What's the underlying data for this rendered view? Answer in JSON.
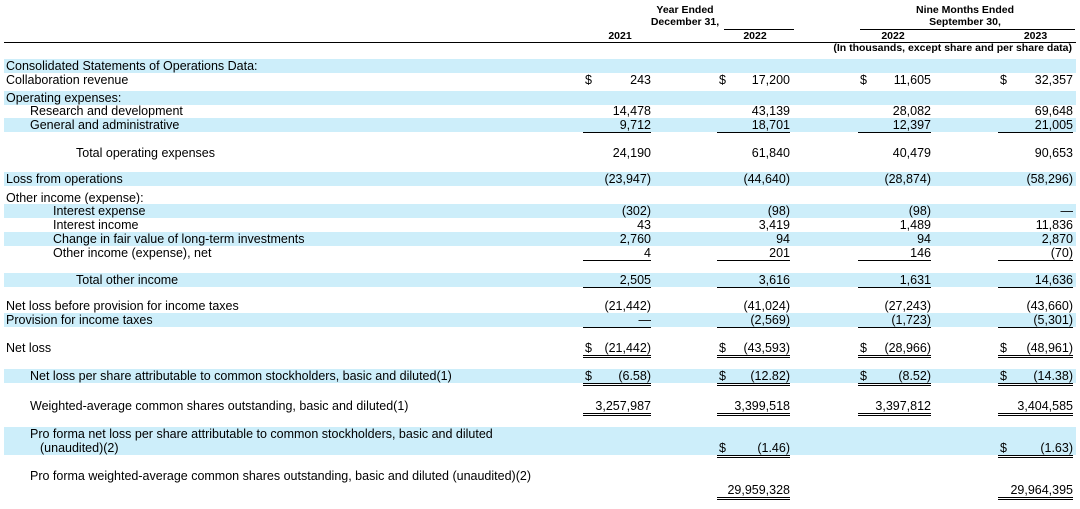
{
  "header": {
    "year_ended": "Year Ended",
    "dec31": "December 31,",
    "nine_months": "Nine Months Ended",
    "sep30": "September 30,",
    "col_2021": "2021",
    "col_2022": "2022",
    "col_2022b": "2022",
    "col_2023": "2023",
    "units": "(In thousands, except share and per share data)"
  },
  "rows": [
    {
      "label": "Consolidated Statements of Operations Data:",
      "values": [
        "",
        "",
        "",
        ""
      ]
    },
    {
      "label": "Collaboration revenue",
      "values": [
        "243",
        "17,200",
        "11,605",
        "32,357"
      ]
    },
    {
      "label": "Operating expenses:",
      "values": [
        "",
        "",
        "",
        ""
      ]
    },
    {
      "label": "Research and development",
      "values": [
        "14,478",
        "43,139",
        "28,082",
        "69,648"
      ]
    },
    {
      "label": "General and administrative",
      "values": [
        "9,712",
        "18,701",
        "12,397",
        "21,005"
      ]
    },
    {
      "label": "Total operating expenses",
      "values": [
        "24,190",
        "61,840",
        "40,479",
        "90,653"
      ]
    },
    {
      "label": "Loss from operations",
      "values": [
        "(23,947)",
        "(44,640)",
        "(28,874)",
        "(58,296)"
      ]
    },
    {
      "label": "Other income (expense):",
      "values": [
        "",
        "",
        "",
        ""
      ]
    },
    {
      "label": "Interest expense",
      "values": [
        "(302)",
        "(98)",
        "(98)",
        "—"
      ]
    },
    {
      "label": "Interest income",
      "values": [
        "43",
        "3,419",
        "1,489",
        "11,836"
      ]
    },
    {
      "label": "Change in fair value of long-term investments",
      "values": [
        "2,760",
        "94",
        "94",
        "2,870"
      ]
    },
    {
      "label": "Other income (expense), net",
      "values": [
        "4",
        "201",
        "146",
        "(70)"
      ]
    },
    {
      "label": "Total other income",
      "values": [
        "2,505",
        "3,616",
        "1,631",
        "14,636"
      ]
    },
    {
      "label": "Net loss before provision for income taxes",
      "values": [
        "(21,442)",
        "(41,024)",
        "(27,243)",
        "(43,660)"
      ]
    },
    {
      "label": "Provision for income taxes",
      "values": [
        "—",
        "(2,569)",
        "(1,723)",
        "(5,301)"
      ]
    },
    {
      "label": "Net loss",
      "values": [
        "(21,442)",
        "(43,593)",
        "(28,966)",
        "(48,961)"
      ]
    },
    {
      "label": "Net loss per share attributable to common stockholders, basic and diluted(1)",
      "values": [
        "(6.58)",
        "(12.82)",
        "(8.52)",
        "(14.38)"
      ]
    },
    {
      "label": "Weighted-average common shares outstanding, basic and diluted(1)",
      "values": [
        "3,257,987",
        "3,399,518",
        "3,397,812",
        "3,404,585"
      ]
    },
    {
      "label": "Pro forma net loss per share attributable to common stockholders, basic and diluted",
      "label2": "(unaudited)(2)",
      "values": [
        "",
        "(1.46)",
        "",
        "(1.63)"
      ]
    },
    {
      "label": "Pro forma weighted-average common shares outstanding, basic and diluted (unaudited)(2)",
      "values": [
        "",
        "29,959,328",
        "",
        "29,964,395"
      ]
    }
  ],
  "currency_symbol": "$"
}
